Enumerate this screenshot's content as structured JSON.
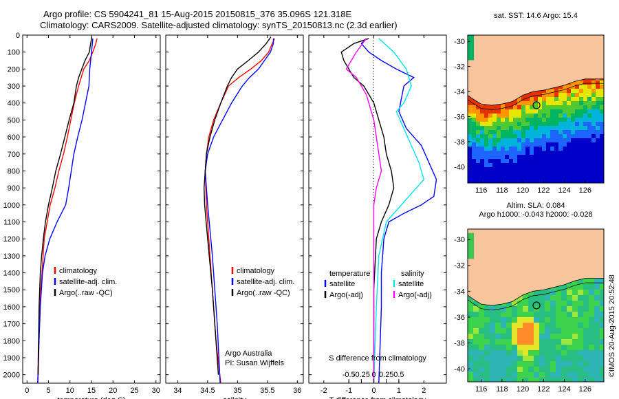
{
  "header": {
    "line1": "Argo profile: CS 5904241_81 15-Aug-2015 20150815_376 35.096S 121.318E",
    "line2": "Climatology: CARS2009. Satellite-adjusted climatology: synTS_20150813.nc (2.3d earlier)"
  },
  "colors": {
    "climatology": "#ff0000",
    "satellite": "#0000ff",
    "argo": "#000000",
    "cyan": "#00e5ee",
    "magenta": "#ff00ff",
    "land": "#f8c49c"
  },
  "chart_data": [
    {
      "type": "line",
      "id": "temperature",
      "xlabel": "temperature (deg C)",
      "xlim": [
        -1,
        31
      ],
      "xticks": [
        0,
        5,
        10,
        15,
        20,
        25,
        30
      ],
      "ylim": [
        2050,
        0
      ],
      "yticks": [
        0,
        100,
        200,
        300,
        400,
        500,
        600,
        700,
        800,
        900,
        1000,
        1100,
        1200,
        1300,
        1400,
        1500,
        1600,
        1700,
        1800,
        1900,
        2000
      ],
      "legend": [
        "climatology",
        "satellite-adj. clim.",
        "Argo(..raw -QC)"
      ],
      "series": [
        {
          "name": "climatology",
          "color": "#ff0000",
          "x": [
            16.3,
            16,
            15.3,
            14.5,
            13.2,
            12,
            11,
            10.2,
            9.4,
            8.5,
            7.4,
            6.5,
            5.4,
            4.7,
            4,
            3.5,
            3.2,
            2.8,
            2.7,
            2.6,
            2.5
          ],
          "y": [
            20,
            50,
            100,
            150,
            200,
            300,
            400,
            500,
            600,
            700,
            800,
            900,
            1000,
            1100,
            1200,
            1400,
            1500,
            1700,
            1800,
            1900,
            2050
          ]
        },
        {
          "name": "satellite-adj. clim.",
          "color": "#0000ff",
          "x": [
            15.3,
            15.2,
            15,
            14.6,
            14.4,
            13.6,
            12.8,
            11.8,
            10.9,
            10.3,
            9.7,
            9,
            7,
            5.3,
            4.2,
            3.6,
            3.1,
            2.8,
            2.7,
            2.5
          ],
          "y": [
            20,
            50,
            100,
            200,
            300,
            400,
            500,
            600,
            700,
            800,
            900,
            1000,
            1100,
            1200,
            1300,
            1400,
            1600,
            1800,
            1900,
            2050
          ]
        },
        {
          "name": "Argo(..raw -QC)",
          "color": "#000000",
          "x": [
            15.1,
            14.8,
            14.5,
            13.5,
            12,
            11.5,
            10.9,
            9.8,
            8.8,
            7.8,
            6.7,
            5.9,
            5,
            4.3,
            3.8,
            3.4,
            3.1,
            2.8,
            2.7,
            2.6
          ],
          "y": [
            10,
            50,
            100,
            150,
            250,
            300,
            400,
            500,
            600,
            700,
            800,
            900,
            1000,
            1100,
            1200,
            1300,
            1400,
            1600,
            1800,
            2000
          ]
        }
      ]
    },
    {
      "type": "line",
      "id": "salinity",
      "xlabel": "salinity",
      "xlim": [
        33.8,
        36.1
      ],
      "xticks": [
        34,
        34.5,
        35,
        35.5,
        36
      ],
      "xticklabels": [
        "34",
        "34.5",
        "35",
        "35.5",
        "36"
      ],
      "ylim": [
        2050,
        0
      ],
      "legend": [
        "climatology",
        "satellite-adj. clim.",
        "Argo(..raw -QC)"
      ],
      "annotation": [
        "Argo Australia",
        "PI: Susan Wijffels"
      ],
      "series": [
        {
          "name": "climatology",
          "color": "#ff0000",
          "x": [
            35.62,
            35.58,
            35.52,
            35.4,
            35.22,
            35.02,
            34.85,
            34.72,
            34.6,
            34.52,
            34.48,
            34.46,
            34.48,
            34.52,
            34.58,
            34.64,
            34.72
          ],
          "y": [
            20,
            50,
            100,
            150,
            200,
            250,
            300,
            400,
            500,
            600,
            700,
            800,
            1000,
            1200,
            1500,
            1800,
            2050
          ]
        },
        {
          "name": "satellite-adj. clim.",
          "color": "#0000ff",
          "x": [
            35.6,
            35.6,
            35.55,
            35.45,
            35.35,
            35.2,
            35.08,
            34.9,
            34.75,
            34.6,
            34.5,
            34.46,
            34.5,
            34.58,
            34.66,
            34.71
          ],
          "y": [
            20,
            50,
            100,
            150,
            200,
            250,
            300,
            400,
            500,
            600,
            700,
            800,
            1000,
            1300,
            1700,
            2050
          ]
        },
        {
          "name": "Argo(..raw -QC)",
          "color": "#000000",
          "x": [
            35.56,
            35.48,
            35.35,
            35.18,
            35,
            34.9,
            34.83,
            34.72,
            34.62,
            34.54,
            34.48,
            34.46,
            34.44,
            34.45,
            34.5,
            34.58,
            34.68
          ],
          "y": [
            10,
            50,
            100,
            150,
            200,
            250,
            300,
            400,
            500,
            600,
            700,
            800,
            900,
            1000,
            1200,
            1500,
            2000
          ]
        }
      ]
    },
    {
      "type": "line",
      "id": "difference",
      "xlabel": "T difference from climatology",
      "xlim": [
        -2.6,
        2.9
      ],
      "xticks": [
        -2,
        -1,
        0,
        1,
        2
      ],
      "topaxis_label": "S difference from climatology",
      "topticks": [
        -0.5,
        -0.25,
        0,
        0.25,
        0.5
      ],
      "topticklabels": [
        "-0.5",
        "-0.25",
        "0",
        "0.25",
        "0.5"
      ],
      "ylim": [
        2050,
        0
      ],
      "legend_left_title": "temperature",
      "legend_right_title": "salinity",
      "legend": [
        "satellite",
        "Argo(-adj)",
        "satellite",
        "Argo(-adj)"
      ],
      "series": [
        {
          "name": "satellite",
          "color": "#0000ff",
          "x": [
            -0.3,
            -0.5,
            -0.2,
            0.3,
            0.9,
            1.6,
            1.2,
            1,
            1.3,
            1.9,
            2.2,
            2.5,
            2.4,
            1.9,
            1.2,
            0.6,
            0.4,
            0.3,
            0.3,
            0.2
          ],
          "y": [
            20,
            50,
            100,
            150,
            200,
            250,
            300,
            450,
            550,
            650,
            750,
            850,
            950,
            1000,
            1050,
            1100,
            1200,
            1400,
            1600,
            2050
          ]
        },
        {
          "name": "Argo(-adj)",
          "color": "#000000",
          "x": [
            -0.2,
            -0.8,
            -1.3,
            -1.2,
            -1,
            -0.8,
            -0.4,
            0,
            0.2,
            0.4,
            0.5,
            0.7,
            0.8,
            0.6,
            0.3,
            0.1,
            0,
            0
          ],
          "y": [
            20,
            50,
            100,
            150,
            200,
            250,
            300,
            400,
            500,
            600,
            700,
            800,
            900,
            1000,
            1100,
            1200,
            1500,
            2050
          ]
        },
        {
          "name": "satellite",
          "color": "#00e5ee",
          "x": [
            0.2,
            0.8,
            1.3,
            1.5,
            1.2,
            0.9,
            1.2,
            1.5,
            1.8,
            2,
            1.4,
            0.5,
            0.2,
            0.1,
            0
          ],
          "y": [
            20,
            100,
            200,
            300,
            400,
            450,
            550,
            650,
            750,
            850,
            950,
            1100,
            1300,
            1600,
            2050
          ]
        },
        {
          "name": "Argo(-adj)",
          "color": "#ff00ff",
          "x": [
            -0.3,
            -0.7,
            -1.1,
            -0.7,
            -0.3,
            0,
            0.1,
            0.2,
            0.3,
            0.1,
            0,
            0
          ],
          "y": [
            20,
            100,
            200,
            250,
            350,
            500,
            600,
            700,
            800,
            900,
            1000,
            2050
          ]
        }
      ]
    },
    {
      "type": "heatmap",
      "id": "sst-map",
      "title": "sat. SST: 14.6 Argo: 15.4",
      "xticks": [
        116,
        118,
        120,
        122,
        124,
        126
      ],
      "yticks": [
        -30,
        -32,
        -34,
        -36,
        -38,
        -40
      ]
    },
    {
      "type": "heatmap",
      "id": "sla-map",
      "title": "Altim. SLA: 0.084",
      "subtitle": "Argo h1000: -0.043 h2000: -0.028",
      "xticks": [
        116,
        118,
        120,
        122,
        124,
        126
      ],
      "yticks": [
        -30,
        -32,
        -34,
        -36,
        -38,
        -40
      ]
    }
  ],
  "stamp": "©IMOS 20-Aug-2015 20:52:48"
}
